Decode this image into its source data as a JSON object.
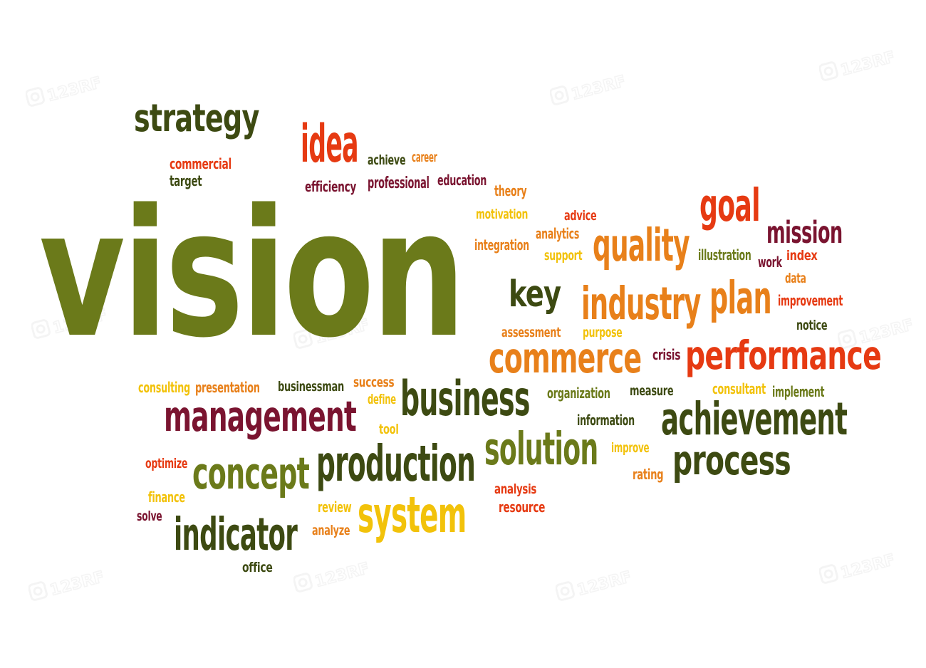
{
  "colors": {
    "olive": "#6b7a1a",
    "darkgreen": "#3d4a12",
    "maroon": "#7a1430",
    "red": "#e63a12",
    "orange": "#e8801a",
    "yellow": "#f2c20a",
    "background": "#ffffff",
    "watermark": "#c8c8c8"
  },
  "watermark": {
    "text": "123RF",
    "icon": "camera-icon"
  },
  "words": [
    {
      "t": "vision",
      "c": "olive"
    },
    {
      "t": "strategy",
      "c": "darkgreen"
    },
    {
      "t": "idea",
      "c": "red"
    },
    {
      "t": "commercial",
      "c": "red"
    },
    {
      "t": "target",
      "c": "darkgreen"
    },
    {
      "t": "achieve",
      "c": "darkgreen"
    },
    {
      "t": "career",
      "c": "orange"
    },
    {
      "t": "efficiency",
      "c": "maroon"
    },
    {
      "t": "professional",
      "c": "maroon"
    },
    {
      "t": "education",
      "c": "maroon"
    },
    {
      "t": "theory",
      "c": "orange"
    },
    {
      "t": "motivation",
      "c": "yellow"
    },
    {
      "t": "advice",
      "c": "red"
    },
    {
      "t": "analytics",
      "c": "orange"
    },
    {
      "t": "integration",
      "c": "orange"
    },
    {
      "t": "support",
      "c": "yellow"
    },
    {
      "t": "goal",
      "c": "red"
    },
    {
      "t": "mission",
      "c": "maroon"
    },
    {
      "t": "quality",
      "c": "orange"
    },
    {
      "t": "illustration",
      "c": "olive"
    },
    {
      "t": "work",
      "c": "maroon"
    },
    {
      "t": "index",
      "c": "red"
    },
    {
      "t": "data",
      "c": "orange"
    },
    {
      "t": "key",
      "c": "darkgreen"
    },
    {
      "t": "industry",
      "c": "orange"
    },
    {
      "t": "plan",
      "c": "orange"
    },
    {
      "t": "improvement",
      "c": "red"
    },
    {
      "t": "assessment",
      "c": "orange"
    },
    {
      "t": "purpose",
      "c": "yellow"
    },
    {
      "t": "notice",
      "c": "darkgreen"
    },
    {
      "t": "commerce",
      "c": "orange"
    },
    {
      "t": "crisis",
      "c": "maroon"
    },
    {
      "t": "performance",
      "c": "red"
    },
    {
      "t": "consulting",
      "c": "yellow"
    },
    {
      "t": "presentation",
      "c": "orange"
    },
    {
      "t": "businessman",
      "c": "darkgreen"
    },
    {
      "t": "success",
      "c": "orange"
    },
    {
      "t": "define",
      "c": "yellow"
    },
    {
      "t": "business",
      "c": "darkgreen"
    },
    {
      "t": "organization",
      "c": "olive"
    },
    {
      "t": "measure",
      "c": "darkgreen"
    },
    {
      "t": "consultant",
      "c": "yellow"
    },
    {
      "t": "implement",
      "c": "olive"
    },
    {
      "t": "management",
      "c": "maroon"
    },
    {
      "t": "tool",
      "c": "yellow"
    },
    {
      "t": "information",
      "c": "darkgreen"
    },
    {
      "t": "achievement",
      "c": "darkgreen"
    },
    {
      "t": "solution",
      "c": "olive"
    },
    {
      "t": "improve",
      "c": "yellow"
    },
    {
      "t": "process",
      "c": "darkgreen"
    },
    {
      "t": "optimize",
      "c": "red"
    },
    {
      "t": "concept",
      "c": "olive"
    },
    {
      "t": "production",
      "c": "darkgreen"
    },
    {
      "t": "rating",
      "c": "orange"
    },
    {
      "t": "analysis",
      "c": "red"
    },
    {
      "t": "finance",
      "c": "yellow"
    },
    {
      "t": "resource",
      "c": "red"
    },
    {
      "t": "review",
      "c": "yellow"
    },
    {
      "t": "solve",
      "c": "maroon"
    },
    {
      "t": "system",
      "c": "yellow"
    },
    {
      "t": "indicator",
      "c": "darkgreen"
    },
    {
      "t": "analyze",
      "c": "orange"
    },
    {
      "t": "office",
      "c": "darkgreen"
    }
  ]
}
